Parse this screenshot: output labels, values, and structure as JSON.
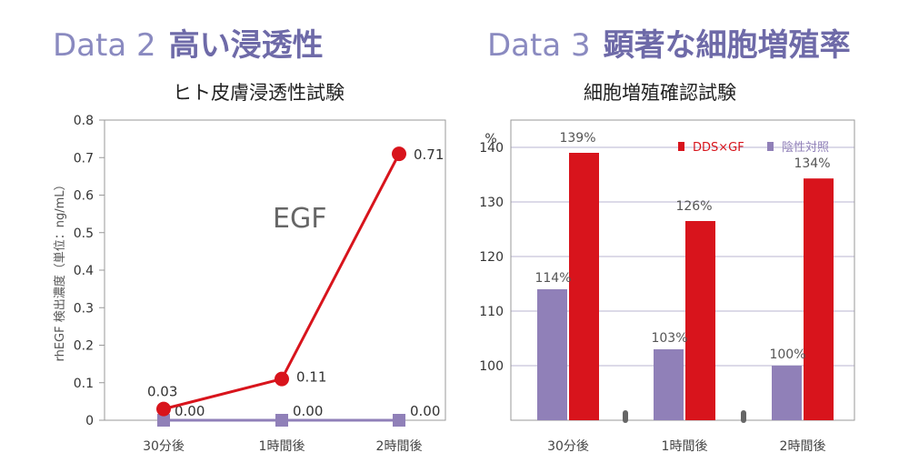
{
  "headings": [
    {
      "prefix": "Data 2",
      "title": "高い浸透性"
    },
    {
      "prefix": "Data 3",
      "title": "顕著な細胞増殖率"
    }
  ],
  "colors": {
    "heading_prefix": "#8a8ac0",
    "heading_title": "#6e6aa8",
    "red": "#d8141c",
    "purple": "#9080b8"
  },
  "chart_data": [
    {
      "type": "line",
      "title": "ヒト皮膚浸透性試験",
      "ylabel": "rhEGF 検出濃度（単位：ng/mL）",
      "annotation": "EGF",
      "categories": [
        "30分後",
        "1時間後",
        "2時間後"
      ],
      "y_ticks": [
        "0",
        "0.1",
        "0.2",
        "0.3",
        "0.4",
        "0.5",
        "0.6",
        "0.7",
        "0.8"
      ],
      "ylim": [
        0,
        0.8
      ],
      "grid": false,
      "series": [
        {
          "values": [
            0.03,
            0.11,
            0.71
          ],
          "labels": [
            "0.03",
            "0.11",
            "0.71"
          ],
          "color": "#d8141c",
          "marker": "circle"
        },
        {
          "values": [
            0.0,
            0.0,
            0.0
          ],
          "labels": [
            "0.00",
            "0.00",
            "0.00"
          ],
          "color": "#9080b8",
          "marker": "square"
        }
      ]
    },
    {
      "type": "bar",
      "title": "細胞増殖確認試験",
      "y_unit": "%",
      "categories": [
        "30分後",
        "1時間後",
        "2時間後"
      ],
      "y_ticks": [
        "100",
        "110",
        "120",
        "130",
        "140"
      ],
      "ylim": [
        90,
        145
      ],
      "grid": true,
      "legend_position": "top-right",
      "series": [
        {
          "name": "陰性対照",
          "values": [
            114,
            103,
            100
          ],
          "labels": [
            "114%",
            "103%",
            "100%"
          ],
          "color": "#9080b8"
        },
        {
          "name": "DDS×GF",
          "values": [
            139,
            126.5,
            134.3
          ],
          "labels": [
            "139%",
            "126%",
            "134%"
          ],
          "color": "#d8141c"
        }
      ]
    }
  ]
}
